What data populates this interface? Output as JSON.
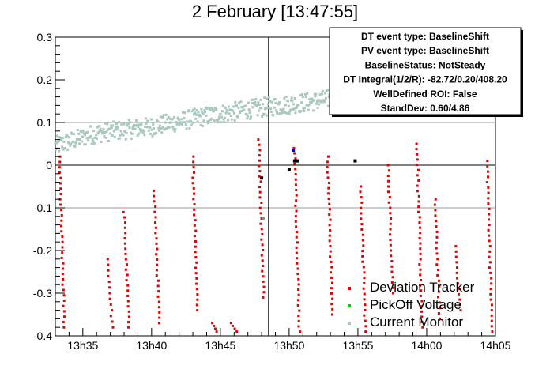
{
  "chart_data": {
    "type": "scatter",
    "title": "2 February [13:47:55]",
    "xlabel": "",
    "ylabel": "",
    "xlim_minutes": [
      33.0,
      65.0
    ],
    "ylim": [
      -0.4,
      0.3
    ],
    "x_ticks": [
      {
        "label": "13h35",
        "value": 35
      },
      {
        "label": "13h40",
        "value": 40
      },
      {
        "label": "13h45",
        "value": 45
      },
      {
        "label": "13h50",
        "value": 50
      },
      {
        "label": "13h55",
        "value": 55
      },
      {
        "label": "14h00",
        "value": 60
      },
      {
        "label": "14h05",
        "value": 65
      }
    ],
    "y_ticks": [
      {
        "label": "0.3",
        "value": 0.3
      },
      {
        "label": "0.2",
        "value": 0.2
      },
      {
        "label": "0.1",
        "value": 0.1
      },
      {
        "label": "0",
        "value": 0
      },
      {
        "label": "-0.1",
        "value": -0.1
      },
      {
        "label": "-0.2",
        "value": -0.2
      },
      {
        "label": "-0.3",
        "value": -0.3
      },
      {
        "label": "-0.4",
        "value": -0.4
      }
    ],
    "grid": false,
    "reference_lines": {
      "horizontal": [
        0.1,
        0,
        -0.1
      ],
      "vertical": [
        48.5
      ]
    },
    "colors": {
      "deviation_tracker": "#e00000",
      "pickoff_voltage": "#00cc00",
      "current_monitor": "#a8c8bc",
      "marker_black": "#000000",
      "marker_blue": "#0000cc",
      "marker_gray": "#888888"
    },
    "current_monitor_trend": [
      {
        "x": 33.0,
        "y": 0.045
      },
      {
        "x": 36.0,
        "y": 0.075
      },
      {
        "x": 40.0,
        "y": 0.09
      },
      {
        "x": 44.0,
        "y": 0.115
      },
      {
        "x": 48.0,
        "y": 0.135
      },
      {
        "x": 52.0,
        "y": 0.15
      },
      {
        "x": 56.0,
        "y": 0.175
      },
      {
        "x": 60.0,
        "y": 0.195
      }
    ],
    "deviation_tracker_sweeps": [
      {
        "x": 33.3,
        "y_top": 0.02,
        "y_bottom": -0.38
      },
      {
        "x": 36.8,
        "y_top": -0.22,
        "y_bottom": -0.38
      },
      {
        "x": 38.0,
        "y_top": -0.11,
        "y_bottom": -0.38
      },
      {
        "x": 40.2,
        "y_top": -0.06,
        "y_bottom": -0.37
      },
      {
        "x": 43.0,
        "y_top": 0.02,
        "y_bottom": -0.34
      },
      {
        "x": 44.4,
        "y_top": -0.37,
        "y_bottom": -0.39
      },
      {
        "x": 45.8,
        "y_top": -0.37,
        "y_bottom": -0.39
      },
      {
        "x": 47.8,
        "y_top": 0.06,
        "y_bottom": -0.31
      },
      {
        "x": 50.4,
        "y_top": 0.04,
        "y_bottom": -0.39
      },
      {
        "x": 52.8,
        "y_top": 0.02,
        "y_bottom": -0.35
      },
      {
        "x": 55.2,
        "y_top": -0.05,
        "y_bottom": -0.39
      },
      {
        "x": 57.2,
        "y_top": 0.0,
        "y_bottom": -0.3
      },
      {
        "x": 59.3,
        "y_top": 0.05,
        "y_bottom": -0.38
      },
      {
        "x": 60.6,
        "y_top": -0.08,
        "y_bottom": -0.36
      },
      {
        "x": 62.1,
        "y_top": -0.19,
        "y_bottom": -0.34
      },
      {
        "x": 64.4,
        "y_top": 0.01,
        "y_bottom": -0.39
      }
    ],
    "special_markers": [
      {
        "x": 48.0,
        "y": -0.03,
        "color": "marker_black"
      },
      {
        "x": 48.1,
        "y": -0.125,
        "color": "marker_gray"
      },
      {
        "x": 50.0,
        "y": -0.01,
        "color": "marker_black"
      },
      {
        "x": 50.4,
        "y": 0.01,
        "color": "marker_black"
      },
      {
        "x": 50.3,
        "y": 0.035,
        "color": "marker_blue"
      },
      {
        "x": 50.6,
        "y": 0.01,
        "color": "marker_black"
      },
      {
        "x": 54.8,
        "y": 0.01,
        "color": "marker_black"
      }
    ],
    "stats_box": [
      "DT event type: BaselineShift",
      "PV event type: BaselineShift",
      "BaselineStatus: NotSteady",
      "DT Integral(1/2/R): -82.72/0.20/408.20",
      "WellDefined ROI: False",
      "StandDev: 0.60/4.86"
    ],
    "legend": {
      "placement": "bottom-right",
      "entries": [
        {
          "label": "Deviation Tracker",
          "color": "deviation_tracker"
        },
        {
          "label": "PickOff Voltage",
          "color": "pickoff_voltage"
        },
        {
          "label": "Current Monitor",
          "color": "current_monitor"
        }
      ]
    }
  }
}
